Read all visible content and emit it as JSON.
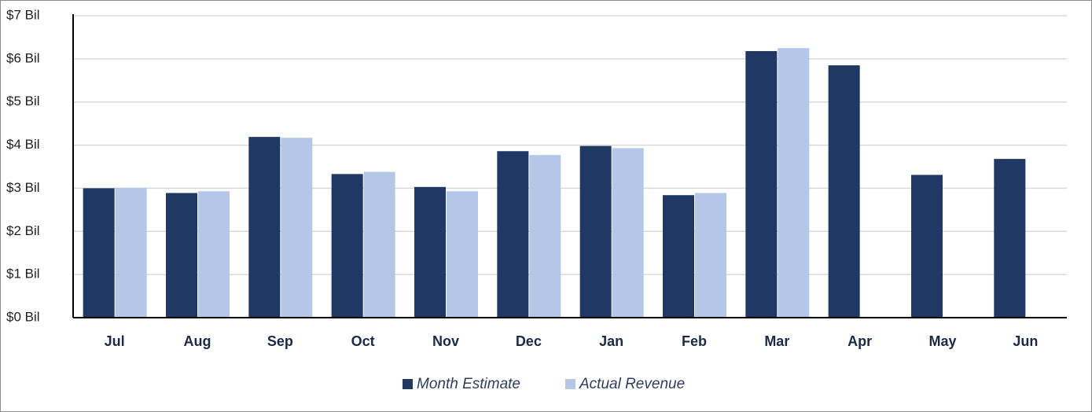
{
  "chart_data": {
    "type": "bar",
    "categories": [
      "Jul",
      "Aug",
      "Sep",
      "Oct",
      "Nov",
      "Dec",
      "Jan",
      "Feb",
      "Mar",
      "Apr",
      "May",
      "Jun"
    ],
    "series": [
      {
        "name": "Month Estimate",
        "color": "#1f3864",
        "values": [
          3.0,
          2.89,
          4.19,
          3.33,
          3.03,
          3.86,
          3.98,
          2.84,
          6.18,
          5.85,
          3.31,
          3.68
        ]
      },
      {
        "name": "Actual Revenue",
        "color": "#b4c7e7",
        "values": [
          3.01,
          2.93,
          4.17,
          3.38,
          2.93,
          3.77,
          3.93,
          2.89,
          6.25,
          null,
          null,
          null
        ]
      }
    ],
    "ylim": [
      0,
      7
    ],
    "yticks": [
      {
        "value": 0,
        "label": "$0 Bil"
      },
      {
        "value": 1,
        "label": "$1 Bil"
      },
      {
        "value": 2,
        "label": "$2 Bil"
      },
      {
        "value": 3,
        "label": "$3 Bil"
      },
      {
        "value": 4,
        "label": "$4 Bil"
      },
      {
        "value": 5,
        "label": "$5 Bil"
      },
      {
        "value": 6,
        "label": "$6 Bil"
      },
      {
        "value": 7,
        "label": "$7 Bil"
      }
    ],
    "grid": true,
    "legend": "bottom"
  }
}
